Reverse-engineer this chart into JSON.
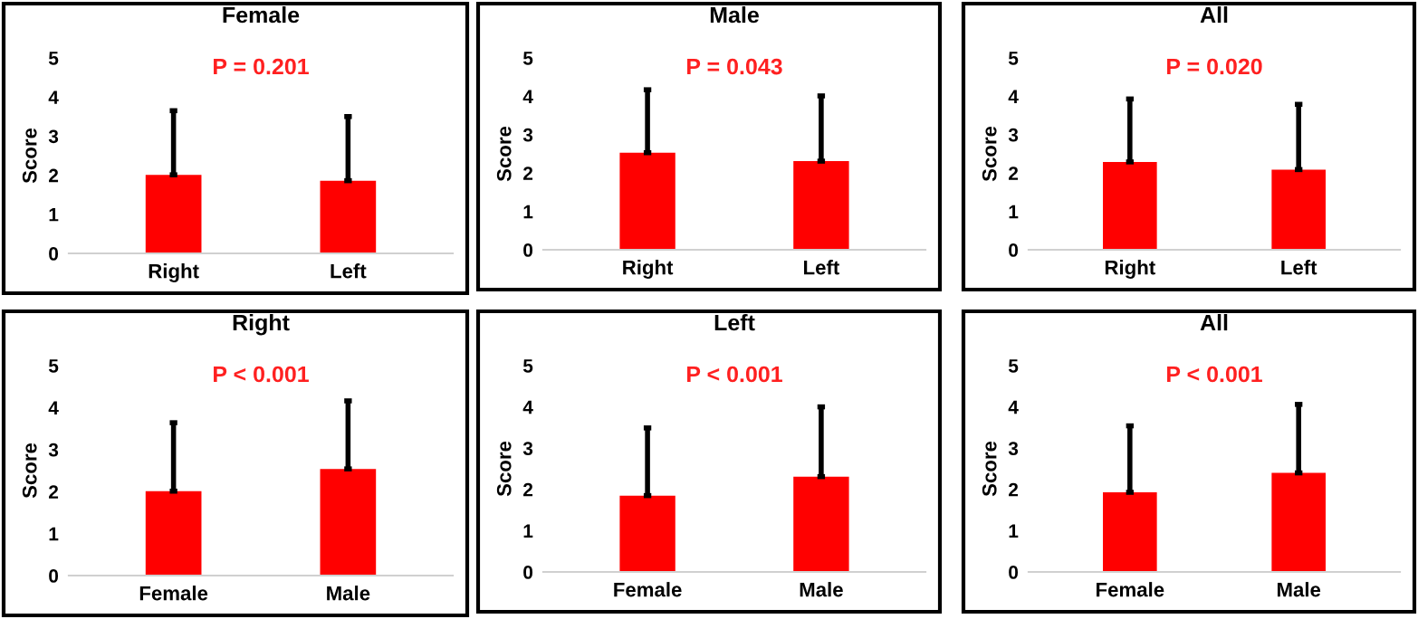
{
  "chart_data": [
    {
      "type": "bar",
      "title": "Female",
      "subtitle": "P = 0.201",
      "ylabel": "Score",
      "categories": [
        "Right",
        "Left"
      ],
      "values": [
        2.01,
        1.86
      ],
      "errors": [
        [
          2.01,
          3.65
        ],
        [
          1.86,
          3.5
        ]
      ],
      "color": "#ff0000",
      "ylim": [
        0,
        5
      ],
      "yticks": [
        0,
        1,
        2,
        3,
        4,
        5
      ],
      "grid": false,
      "legend": false
    },
    {
      "type": "bar",
      "title": "Male",
      "subtitle": "P = 0.043",
      "ylabel": "Score",
      "categories": [
        "Right",
        "Left"
      ],
      "values": [
        2.53,
        2.31
      ],
      "errors": [
        [
          2.53,
          4.17
        ],
        [
          2.31,
          4.01
        ]
      ],
      "color": "#ff0000",
      "ylim": [
        0,
        5
      ],
      "yticks": [
        0,
        1,
        2,
        3,
        4,
        5
      ],
      "grid": false,
      "legend": false
    },
    {
      "type": "bar",
      "title": "All",
      "subtitle": "P = 0.020",
      "ylabel": "Score",
      "categories": [
        "Right",
        "Left"
      ],
      "values": [
        2.29,
        2.09
      ],
      "errors": [
        [
          2.29,
          3.93
        ],
        [
          2.09,
          3.79
        ]
      ],
      "color": "#ff0000",
      "ylim": [
        0,
        5
      ],
      "yticks": [
        0,
        1,
        2,
        3,
        4,
        5
      ],
      "grid": false,
      "legend": false
    },
    {
      "type": "bar",
      "title": "Right",
      "subtitle": "P < 0.001",
      "ylabel": "Score",
      "categories": [
        "Female",
        "Male"
      ],
      "values": [
        2.01,
        2.54
      ],
      "errors": [
        [
          2.01,
          3.64
        ],
        [
          2.54,
          4.16
        ]
      ],
      "color": "#ff0000",
      "ylim": [
        0,
        5
      ],
      "yticks": [
        0,
        1,
        2,
        3,
        4,
        5
      ],
      "grid": false,
      "legend": false
    },
    {
      "type": "bar",
      "title": "Left",
      "subtitle": "P < 0.001",
      "ylabel": "Score",
      "categories": [
        "Female",
        "Male"
      ],
      "values": [
        1.85,
        2.31
      ],
      "errors": [
        [
          1.85,
          3.49
        ],
        [
          2.31,
          4.0
        ]
      ],
      "color": "#ff0000",
      "ylim": [
        0,
        5
      ],
      "yticks": [
        0,
        1,
        2,
        3,
        4,
        5
      ],
      "grid": false,
      "legend": false
    },
    {
      "type": "bar",
      "title": "All",
      "subtitle": "P < 0.001",
      "ylabel": "Score",
      "categories": [
        "Female",
        "Male"
      ],
      "values": [
        1.93,
        2.4
      ],
      "errors": [
        [
          1.93,
          3.54
        ],
        [
          2.4,
          4.06
        ]
      ],
      "color": "#ff0000",
      "ylim": [
        0,
        5
      ],
      "yticks": [
        0,
        1,
        2,
        3,
        4,
        5
      ],
      "grid": false,
      "legend": false
    }
  ]
}
